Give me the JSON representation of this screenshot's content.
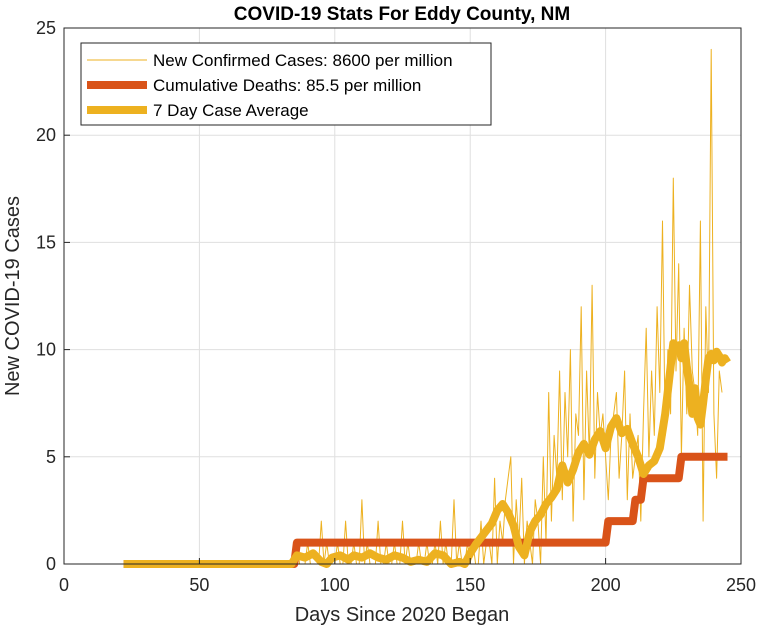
{
  "chart_data": {
    "type": "line",
    "title": "COVID-19 Stats For Eddy County, NM",
    "xlabel": "Days Since 2020 Began",
    "ylabel": "New COVID-19 Cases",
    "xlim": [
      0,
      250
    ],
    "ylim": [
      0,
      25
    ],
    "xticks": [
      "0",
      "50",
      "100",
      "150",
      "200",
      "250"
    ],
    "yticks": [
      "0",
      "5",
      "10",
      "15",
      "20",
      "25"
    ],
    "grid": true,
    "legend_position": "top-left",
    "series": [
      {
        "name": "New Confirmed Cases: 8600 per million",
        "color": "#EDB120",
        "style": "thin",
        "x_start": 22,
        "values": [
          0,
          0,
          0,
          0,
          0,
          0,
          0,
          0,
          0,
          0,
          0,
          0,
          0,
          0,
          0,
          0,
          0,
          0,
          0,
          0,
          0,
          0,
          0,
          0,
          0,
          0,
          0,
          0,
          0,
          0,
          0,
          0,
          0,
          0,
          0,
          0,
          0,
          0,
          0,
          0,
          0,
          0,
          0,
          0,
          0,
          0,
          0,
          0,
          0,
          0,
          0,
          0,
          0,
          0,
          0,
          0,
          0,
          0,
          0,
          0,
          0,
          0,
          0,
          0,
          1,
          0,
          0,
          0,
          1,
          0,
          0,
          0,
          0,
          2,
          0,
          1,
          0,
          0,
          0,
          1,
          0,
          0,
          2,
          0,
          0,
          1,
          0,
          0,
          3,
          0,
          1,
          0,
          0,
          0,
          2,
          0,
          0,
          1,
          0,
          0,
          1,
          0,
          0,
          2,
          0,
          1,
          0,
          0,
          0,
          1,
          0,
          0,
          1,
          0,
          0,
          1,
          0,
          2,
          0,
          1,
          0,
          0,
          3,
          0,
          1,
          0,
          0,
          1,
          0,
          1,
          0,
          0,
          2,
          0,
          1,
          1,
          0,
          4,
          0,
          2,
          1,
          3,
          4,
          5,
          0,
          3,
          1,
          4,
          0,
          2,
          1,
          0,
          3,
          2,
          0,
          5,
          1,
          8,
          2,
          6,
          4,
          9,
          3,
          8,
          5,
          10,
          2,
          7,
          6,
          12,
          3,
          9,
          5,
          13,
          4,
          8,
          6,
          7,
          5,
          3,
          6,
          7,
          8,
          4,
          6,
          9,
          3,
          7,
          4,
          5,
          6,
          2,
          7,
          11,
          5,
          9,
          6,
          12,
          8,
          16,
          6,
          10,
          7,
          18,
          9,
          14,
          5,
          11,
          7,
          13,
          9,
          8,
          6,
          16,
          2,
          12,
          8,
          24,
          7,
          4,
          9,
          8
        ]
      },
      {
        "name": "Cumulative Deaths: 85.5 per million",
        "color": "#D95319",
        "style": "thick",
        "points": [
          [
            22,
            0
          ],
          [
            85,
            0
          ],
          [
            86,
            1
          ],
          [
            200,
            1
          ],
          [
            201,
            2
          ],
          [
            210,
            2
          ],
          [
            211,
            3
          ],
          [
            213,
            3
          ],
          [
            214,
            4
          ],
          [
            227,
            4
          ],
          [
            228,
            5
          ],
          [
            245,
            5
          ]
        ]
      },
      {
        "name": "7 Day Case Average",
        "color": "#EDB120",
        "style": "thick",
        "points": [
          [
            22,
            0
          ],
          [
            84,
            0
          ],
          [
            86,
            0.4
          ],
          [
            89,
            0.3
          ],
          [
            92,
            0.5
          ],
          [
            95,
            0.1
          ],
          [
            97,
            0.0
          ],
          [
            99,
            0.3
          ],
          [
            102,
            0.4
          ],
          [
            105,
            0.2
          ],
          [
            107,
            0.4
          ],
          [
            110,
            0.3
          ],
          [
            113,
            0.5
          ],
          [
            116,
            0.3
          ],
          [
            119,
            0.2
          ],
          [
            122,
            0.4
          ],
          [
            125,
            0.3
          ],
          [
            128,
            0.1
          ],
          [
            131,
            0.2
          ],
          [
            134,
            0.1
          ],
          [
            137,
            0.5
          ],
          [
            140,
            0.4
          ],
          [
            143,
            0.0
          ],
          [
            146,
            0.1
          ],
          [
            148,
            0.0
          ],
          [
            150,
            0.5
          ],
          [
            152,
            0.9
          ],
          [
            155,
            1.4
          ],
          [
            158,
            1.9
          ],
          [
            160,
            2.5
          ],
          [
            162,
            2.8
          ],
          [
            164,
            2.4
          ],
          [
            166,
            1.8
          ],
          [
            168,
            0.8
          ],
          [
            170,
            0.4
          ],
          [
            172,
            1.5
          ],
          [
            174,
            2.0
          ],
          [
            176,
            2.3
          ],
          [
            178,
            2.8
          ],
          [
            180,
            3.1
          ],
          [
            182,
            3.5
          ],
          [
            184,
            4.6
          ],
          [
            186,
            3.8
          ],
          [
            188,
            4.4
          ],
          [
            190,
            5.2
          ],
          [
            192,
            5.6
          ],
          [
            194,
            5.1
          ],
          [
            196,
            5.8
          ],
          [
            198,
            6.2
          ],
          [
            200,
            5.4
          ],
          [
            202,
            6.4
          ],
          [
            204,
            6.8
          ],
          [
            206,
            6.1
          ],
          [
            208,
            6.3
          ],
          [
            210,
            5.6
          ],
          [
            212,
            5.0
          ],
          [
            214,
            4.2
          ],
          [
            216,
            4.6
          ],
          [
            218,
            4.8
          ],
          [
            220,
            5.4
          ],
          [
            222,
            7.0
          ],
          [
            224,
            9.2
          ],
          [
            225,
            10.3
          ],
          [
            226,
            10.0
          ],
          [
            227,
            10.2
          ],
          [
            228,
            9.6
          ],
          [
            229,
            10.3
          ],
          [
            230,
            9.2
          ],
          [
            231,
            8.3
          ],
          [
            232,
            7.0
          ],
          [
            233,
            8.2
          ],
          [
            234,
            6.8
          ],
          [
            235,
            6.5
          ],
          [
            236,
            7.5
          ],
          [
            237,
            8.6
          ],
          [
            238,
            9.6
          ],
          [
            239,
            9.8
          ],
          [
            240,
            9.5
          ],
          [
            241,
            9.9
          ],
          [
            242,
            9.7
          ],
          [
            243,
            9.4
          ],
          [
            244,
            9.6
          ],
          [
            245,
            9.4
          ]
        ]
      }
    ]
  }
}
